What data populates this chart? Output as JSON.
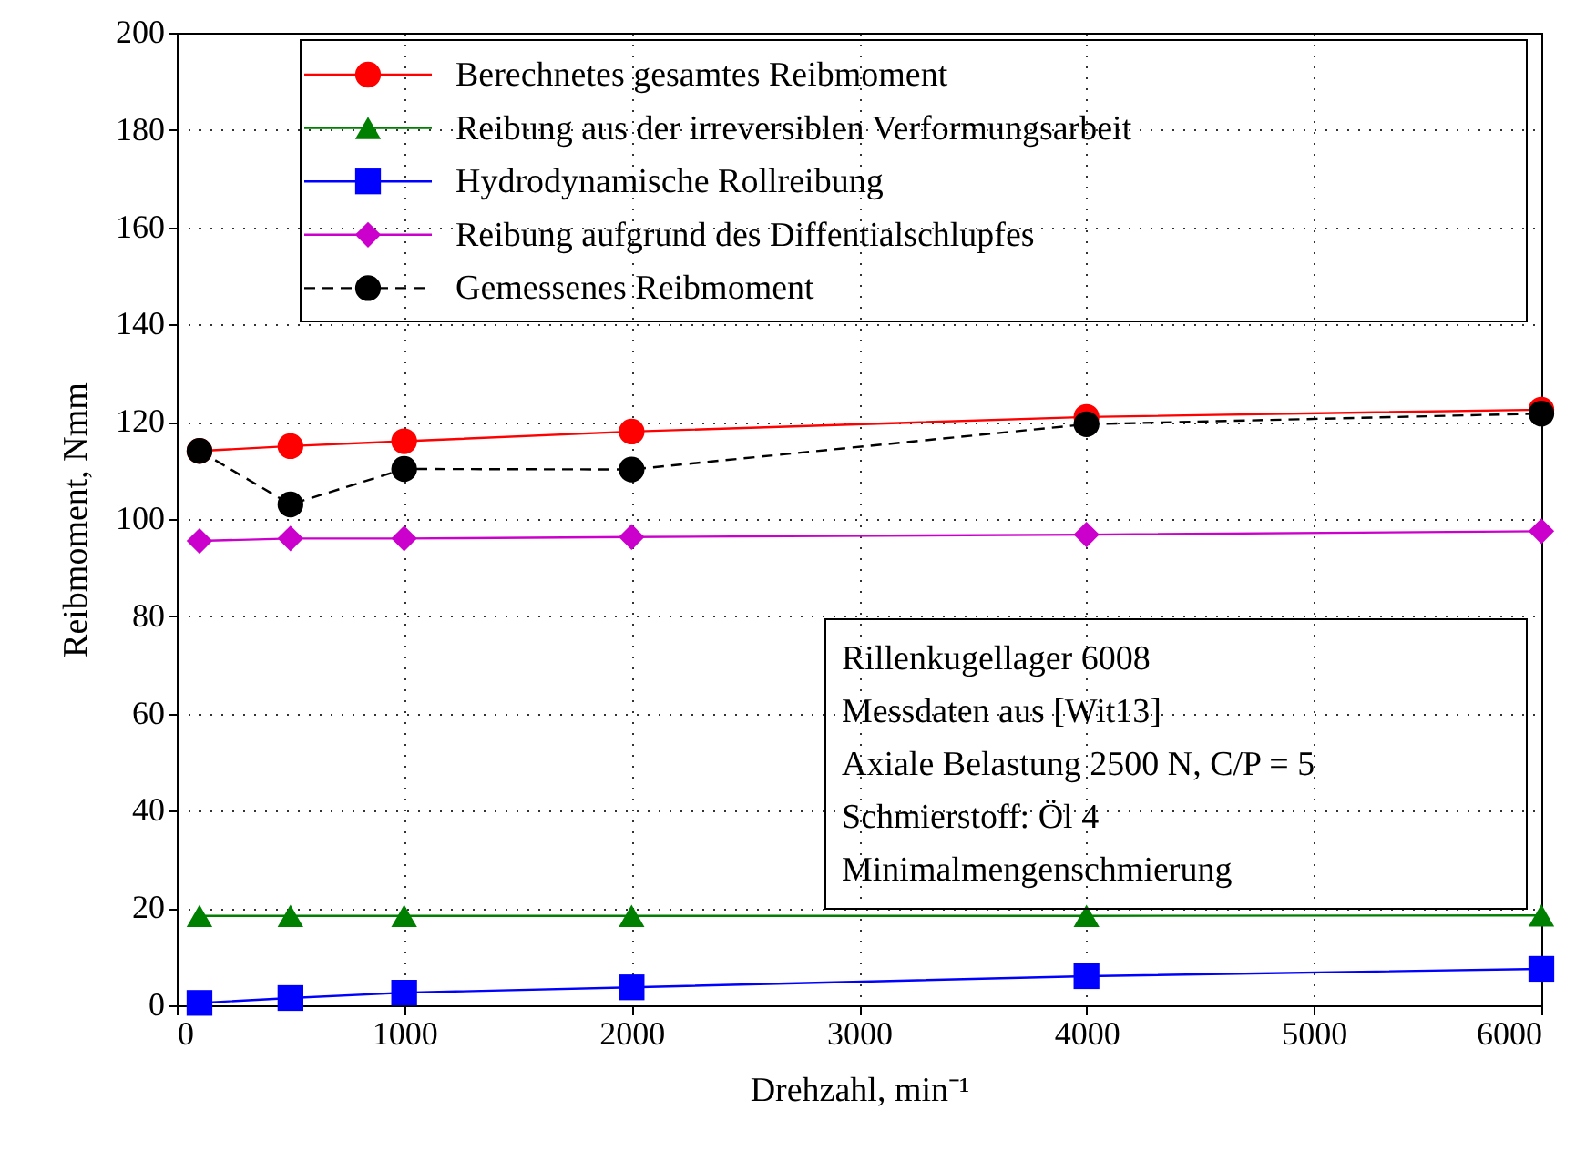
{
  "chart_data": {
    "type": "line",
    "xlabel": "Drehzahl, min⁻¹",
    "ylabel": "Reibmoment, Nmm",
    "x": [
      100,
      500,
      1000,
      2000,
      4000,
      6000
    ],
    "series": [
      {
        "name": "Berechnetes gesamtes Reibmoment",
        "color": "#ff0000",
        "marker": "circle",
        "line_style": "solid",
        "values": [
          114,
          115,
          116,
          118,
          121,
          122.5
        ]
      },
      {
        "name": "Reibung aus der irreversiblen Verformungsarbeit",
        "color": "#008000",
        "marker": "triangle",
        "line_style": "solid",
        "values": [
          18.4,
          18.4,
          18.4,
          18.4,
          18.4,
          18.5
        ]
      },
      {
        "name": "Hydrodynamische Rollreibung",
        "color": "#0000ff",
        "marker": "square",
        "line_style": "solid",
        "values": [
          0.5,
          1.5,
          2.6,
          3.7,
          6,
          7.5
        ]
      },
      {
        "name": "Reibung aufgrund des Diffentialschlupfes",
        "color": "#cc00cc",
        "marker": "diamond",
        "line_style": "solid",
        "values": [
          95.5,
          96,
          96,
          96.3,
          96.8,
          97.5
        ]
      },
      {
        "name": "Gemessenes Reibmoment",
        "color": "#000000",
        "marker": "circle",
        "line_style": "dashed",
        "values": [
          114,
          103,
          110.3,
          110.2,
          119.5,
          121.7
        ]
      }
    ],
    "annotations": [
      "Rillenkugellager 6008",
      "Messdaten aus [Wit13]",
      "Axiale Belastung 2500 N, C/P = 5",
      "Schmierstoff: Öl 4",
      "Minimalmengenschmierung"
    ],
    "xlim": [
      0,
      6000
    ],
    "xticks": [
      0,
      1000,
      2000,
      3000,
      4000,
      5000,
      6000
    ],
    "ylim": [
      0,
      200
    ],
    "yticks": [
      0,
      20,
      40,
      60,
      80,
      100,
      120,
      140,
      160,
      180,
      200
    ],
    "grid": true,
    "legend": "top"
  }
}
